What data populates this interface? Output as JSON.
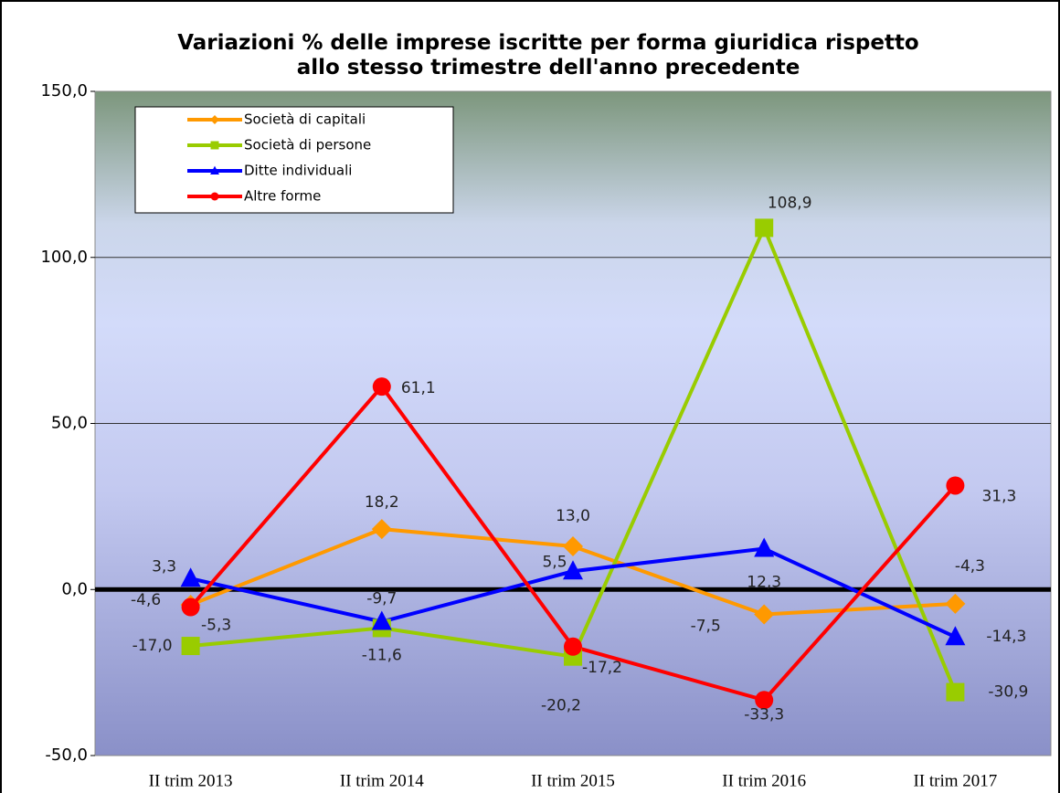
{
  "chart_data": {
    "type": "line",
    "title": "Variazioni % delle imprese iscritte per forma giuridica rispetto allo stesso trimestre dell'anno precedente",
    "categories": [
      "II trim 2013",
      "II trim 2014",
      "II trim 2015",
      "II trim 2016",
      "II trim 2017"
    ],
    "series": [
      {
        "name": "Società di capitali",
        "color": "#ff9900",
        "values": [
          -4.6,
          18.2,
          13.0,
          -7.5,
          -4.3
        ],
        "value_labels": [
          "-4,6",
          "18,2",
          "13,0",
          "-7,5",
          "-4,3"
        ]
      },
      {
        "name": "Società di persone",
        "color": "#99cc00",
        "values": [
          -17.0,
          -11.6,
          -20.2,
          108.9,
          -30.9
        ],
        "value_labels": [
          "-17,0",
          "-11,6",
          "-20,2",
          "108,9",
          "-30,9"
        ]
      },
      {
        "name": "Ditte individuali",
        "color": "#0000ff",
        "values": [
          3.3,
          -9.7,
          5.5,
          12.3,
          -14.3
        ],
        "value_labels": [
          "3,3",
          "-9,7",
          "5,5",
          "12,3",
          "-14,3"
        ]
      },
      {
        "name": "Altre forme",
        "color": "#ff0000",
        "values": [
          -5.3,
          61.1,
          -17.2,
          -33.3,
          31.3
        ],
        "value_labels": [
          "-5,3",
          "61,1",
          "-17,2",
          "-33,3",
          "31,3"
        ]
      }
    ],
    "ylim": [
      -50,
      150
    ],
    "yticks": [
      {
        "value": -50,
        "label": "-50,0"
      },
      {
        "value": 0,
        "label": "0,0"
      },
      {
        "value": 50,
        "label": "50,0"
      },
      {
        "value": 100,
        "label": "100,0"
      },
      {
        "value": 150,
        "label": "150,0"
      }
    ],
    "grid": true,
    "legend": "upper left"
  }
}
